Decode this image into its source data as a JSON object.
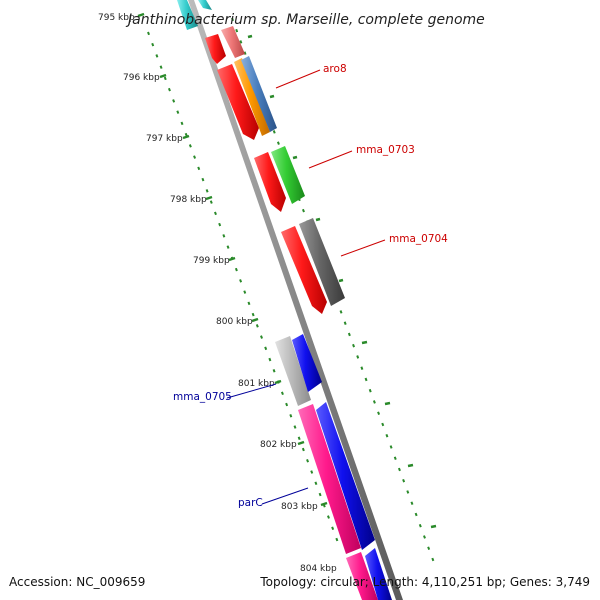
{
  "title": "Janthinobacterium sp. Marseille, complete genome",
  "footer": {
    "accession": "Accession: NC_009659",
    "topology": "Topology: circular; Length: 4,110,251 bp; Genes: 3,749"
  },
  "ticks": [
    {
      "label": "795 kbp"
    },
    {
      "label": "796 kbp"
    },
    {
      "label": "797 kbp"
    },
    {
      "label": "798 kbp"
    },
    {
      "label": "799 kbp"
    },
    {
      "label": "800 kbp"
    },
    {
      "label": "801 kbp"
    },
    {
      "label": "802 kbp"
    },
    {
      "label": "803 kbp"
    },
    {
      "label": "804 kbp"
    }
  ],
  "gene_labels": [
    {
      "name": "aro8",
      "color": "#cc0000"
    },
    {
      "name": "mma_0703",
      "color": "#cc0000"
    },
    {
      "name": "mma_0704",
      "color": "#cc0000"
    },
    {
      "name": "mma_0705",
      "color": "#000099"
    },
    {
      "name": "parC",
      "color": "#000099"
    }
  ],
  "colors": {
    "backbone": "#888888",
    "tick_dots": "#2a8a2a",
    "forward_red": "#ff1a1a",
    "pink": "#ff1a8c",
    "blue": "#1010ee",
    "green": "#33cc33",
    "grey": "#666666",
    "light_grey": "#bbbbbb",
    "orange": "#ff9900",
    "steel_blue": "#4a7fbf",
    "salmon": "#ee7777",
    "cyan": "#33cccc"
  }
}
